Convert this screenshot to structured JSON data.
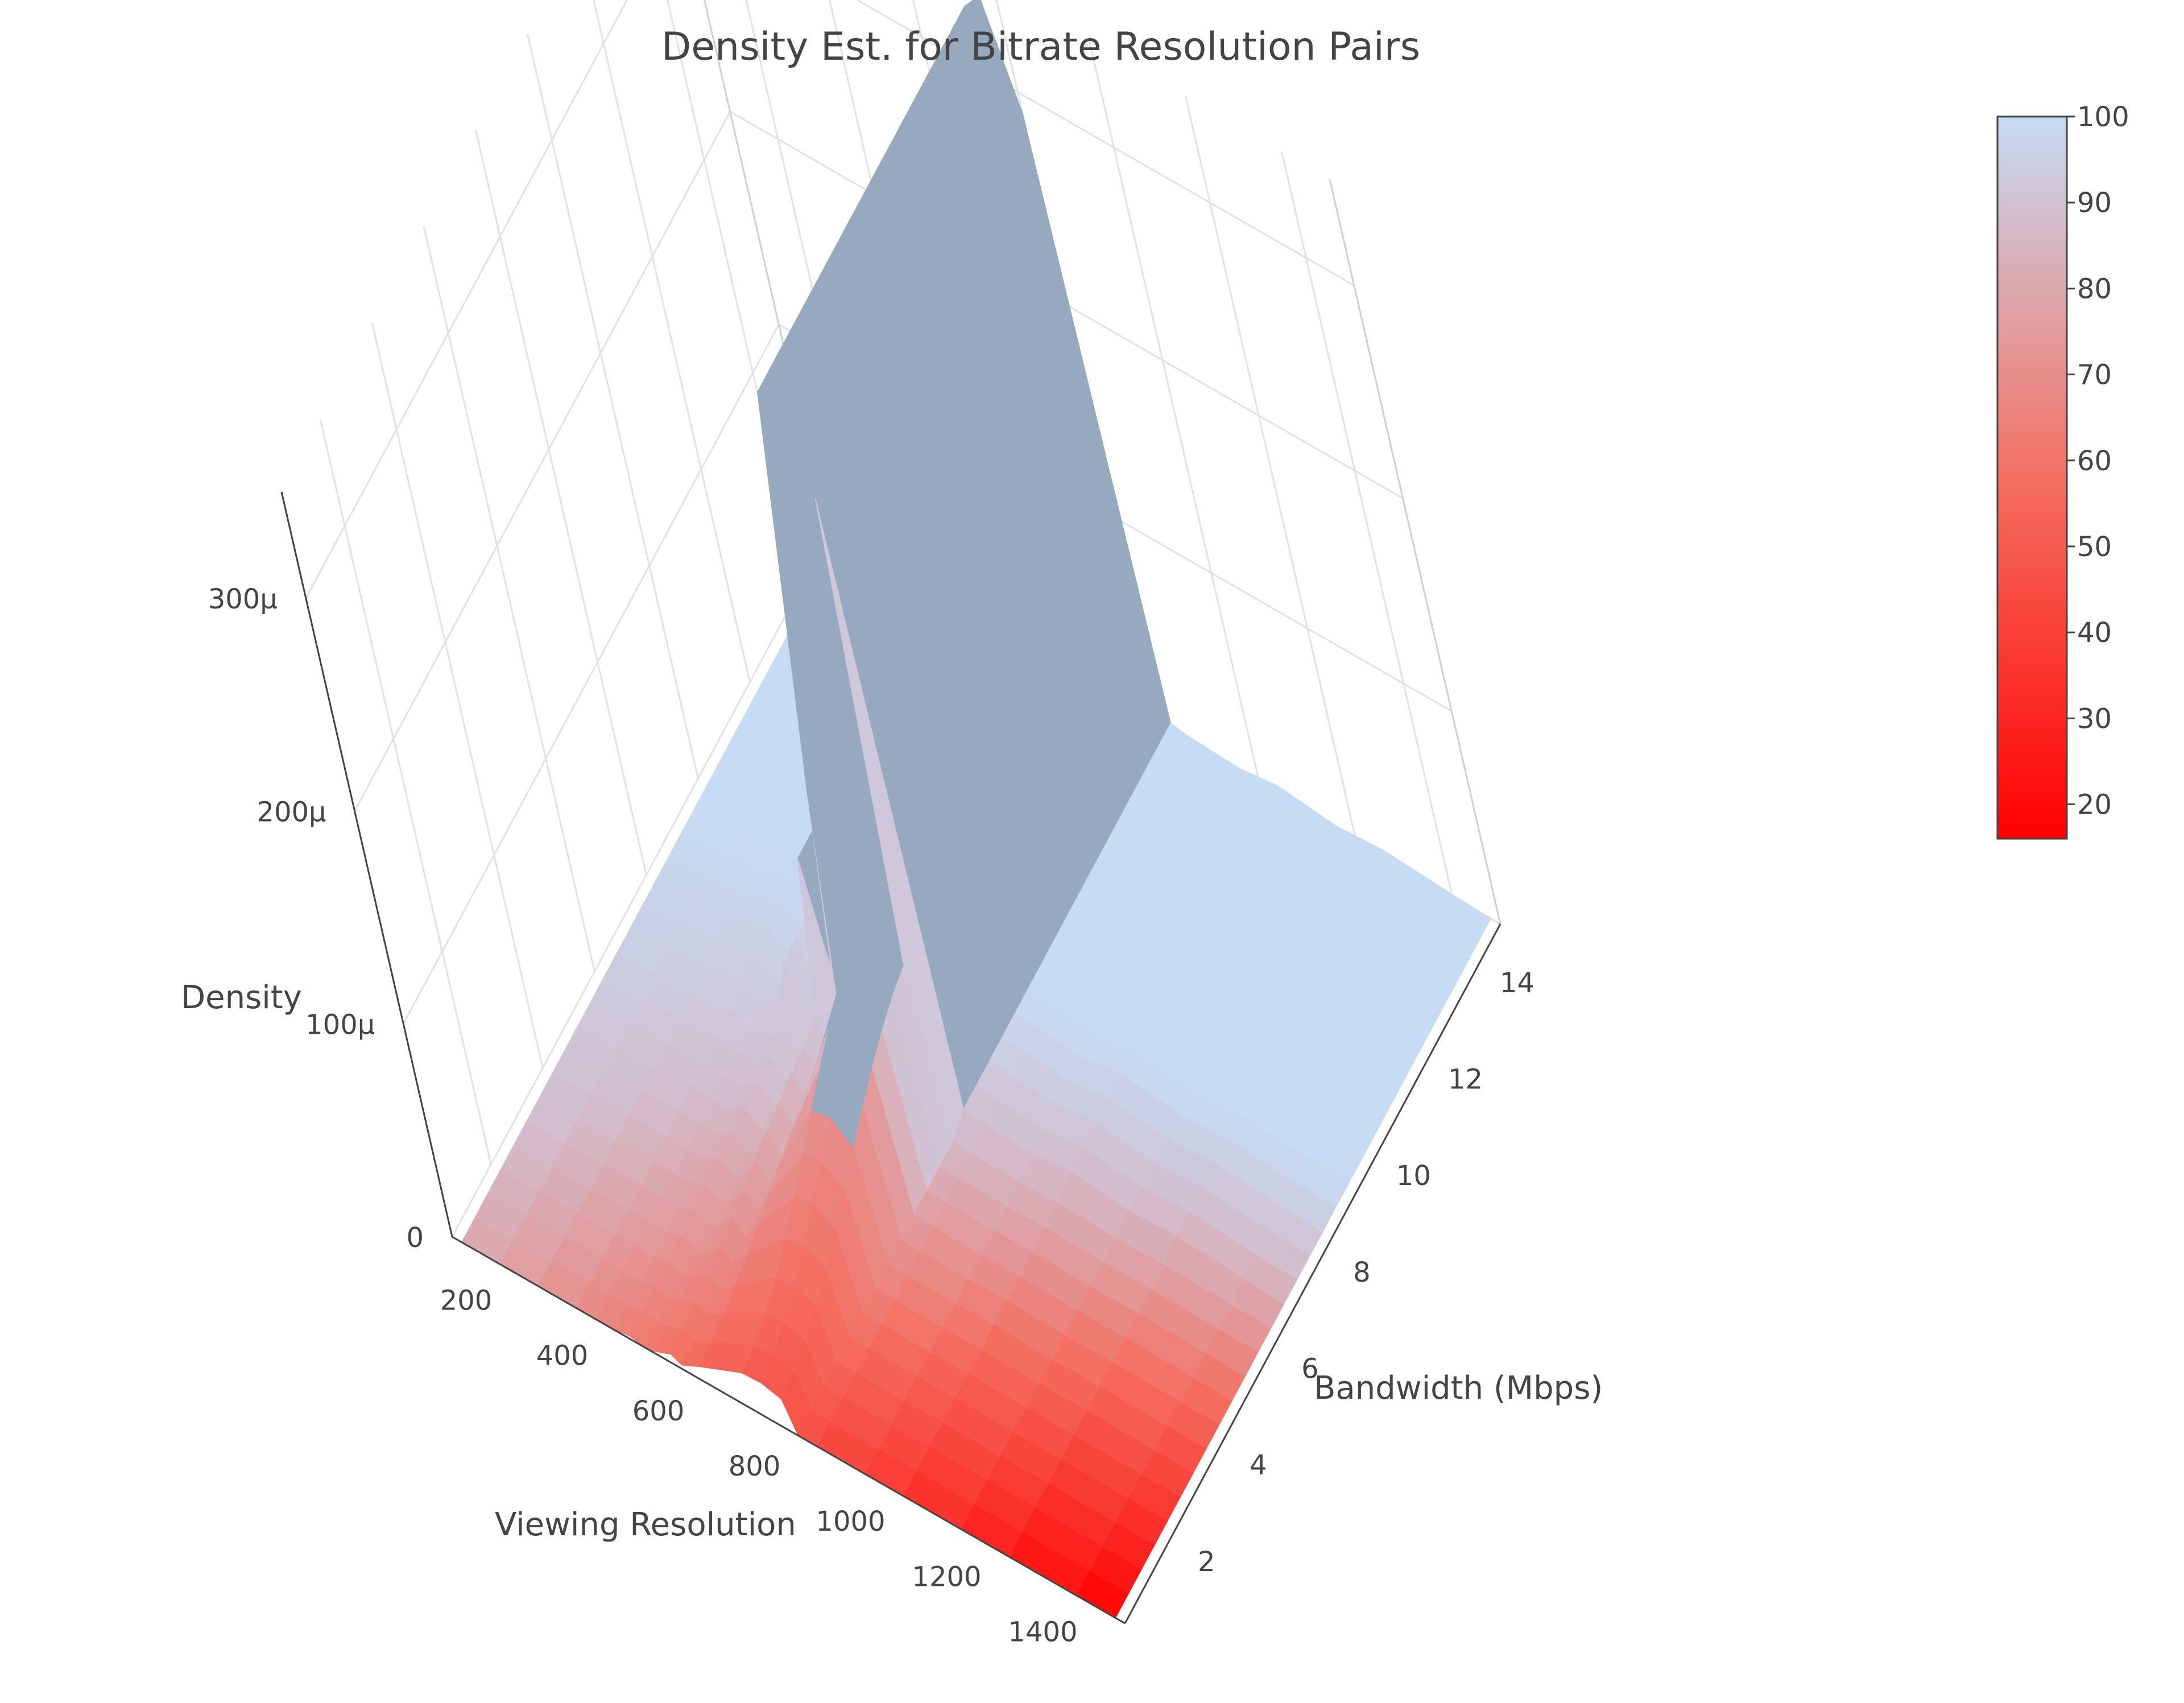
{
  "chart_data": {
    "type": "surface",
    "title": "Density Est. for Bitrate Resolution Pairs",
    "xlabel": "Viewing Resolution",
    "ylabel": "Bandwidth (Mbps)",
    "zlabel": "Density",
    "x_ticks": [
      "200",
      "400",
      "600",
      "800",
      "1000",
      "1200",
      "1400"
    ],
    "y_ticks": [
      "2",
      "4",
      "6",
      "8",
      "10",
      "12",
      "14"
    ],
    "z_ticks": [
      "0",
      "100μ",
      "200μ",
      "300μ"
    ],
    "xlim": [
      100,
      1500
    ],
    "ylim": [
      0.5,
      15
    ],
    "zlim": [
      0,
      0.00035
    ],
    "x": [
      120,
      200,
      280,
      360,
      400,
      440,
      470,
      500,
      520,
      560,
      580,
      620,
      720,
      760,
      800,
      820,
      860,
      960,
      1040,
      1160,
      1260,
      1400,
      1480
    ],
    "profile": [
      0.0,
      1.6e-06,
      3e-06,
      8.5e-06,
      2e-06,
      6.5e-06,
      3e-05,
      3e-06,
      1.6e-05,
      9e-05,
      4e-05,
      0.00013,
      0.00033,
      0.00034,
      0.00029,
      6e-06,
      4.5e-06,
      3e-06,
      5.5e-06,
      2e-06,
      3.5e-06,
      1e-06,
      0.0
    ],
    "peak_bandwidth_range": [
      7,
      15
    ],
    "low_bandwidth_scale": 0.05,
    "colorbar": {
      "ticks": [
        "20",
        "30",
        "40",
        "50",
        "60",
        "70",
        "80",
        "90",
        "100"
      ],
      "range": [
        16,
        100
      ],
      "colors": [
        "#ff0000",
        "#c7ddf5"
      ]
    },
    "grid": true,
    "legend": "colorbar-right"
  }
}
